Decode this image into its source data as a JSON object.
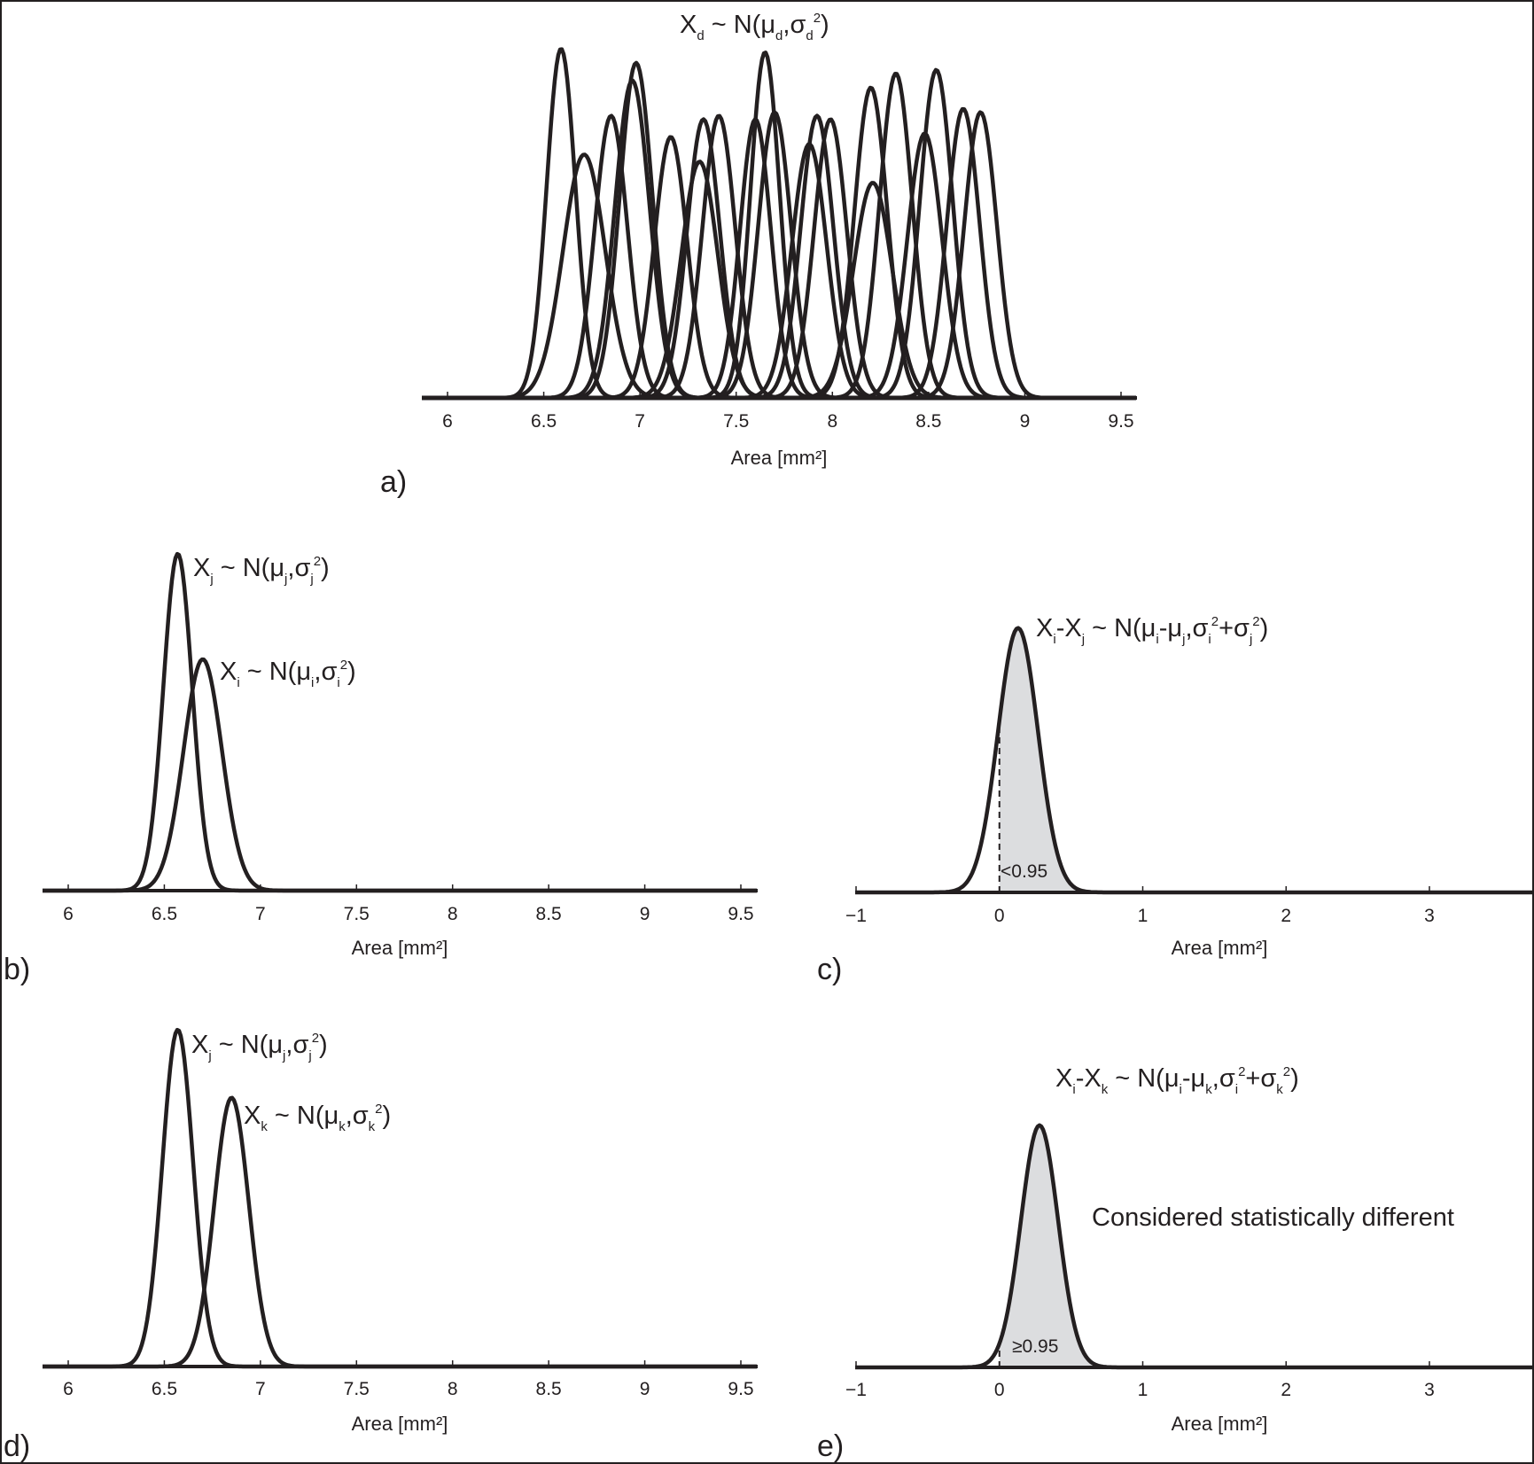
{
  "chart_data": [
    {
      "id": "a",
      "type": "line",
      "panel_label": "a)",
      "annotation": {
        "base": "X",
        "sub": "d",
        "rest1": " ~ N(μ",
        "sub2": "d",
        "rest2": ",σ",
        "sub3": "d",
        "sup": "2",
        "rest3": ")"
      },
      "xlabel": "Area  [mm²]",
      "xlim": [
        5.87,
        9.6
      ],
      "xticks": [
        6,
        6.5,
        7,
        7.5,
        8,
        8.5,
        9,
        9.5
      ],
      "xtick_labels": [
        "6",
        "6.5",
        "7",
        "7.5",
        "8",
        "8.5",
        "9",
        "9.5"
      ],
      "ylim": [
        0,
        1
      ],
      "series": [
        {
          "mean": 6.59,
          "sd": 0.075,
          "peak": 0.99
        },
        {
          "mean": 6.71,
          "sd": 0.11,
          "peak": 0.69
        },
        {
          "mean": 6.85,
          "sd": 0.085,
          "peak": 0.8
        },
        {
          "mean": 6.96,
          "sd": 0.09,
          "peak": 0.9
        },
        {
          "mean": 6.98,
          "sd": 0.085,
          "peak": 0.95
        },
        {
          "mean": 7.16,
          "sd": 0.085,
          "peak": 0.74
        },
        {
          "mean": 7.31,
          "sd": 0.095,
          "peak": 0.67
        },
        {
          "mean": 7.33,
          "sd": 0.085,
          "peak": 0.79
        },
        {
          "mean": 7.41,
          "sd": 0.085,
          "peak": 0.8
        },
        {
          "mean": 7.6,
          "sd": 0.08,
          "peak": 0.79
        },
        {
          "mean": 7.65,
          "sd": 0.075,
          "peak": 0.98
        },
        {
          "mean": 7.7,
          "sd": 0.085,
          "peak": 0.81
        },
        {
          "mean": 7.88,
          "sd": 0.09,
          "peak": 0.72
        },
        {
          "mean": 7.92,
          "sd": 0.085,
          "peak": 0.8
        },
        {
          "mean": 7.99,
          "sd": 0.085,
          "peak": 0.79
        },
        {
          "mean": 8.21,
          "sd": 0.1,
          "peak": 0.61
        },
        {
          "mean": 8.2,
          "sd": 0.085,
          "peak": 0.88
        },
        {
          "mean": 8.33,
          "sd": 0.085,
          "peak": 0.92
        },
        {
          "mean": 8.48,
          "sd": 0.09,
          "peak": 0.75
        },
        {
          "mean": 8.54,
          "sd": 0.085,
          "peak": 0.93
        },
        {
          "mean": 8.68,
          "sd": 0.085,
          "peak": 0.82
        },
        {
          "mean": 8.77,
          "sd": 0.085,
          "peak": 0.81
        }
      ]
    },
    {
      "id": "b",
      "type": "line",
      "panel_label": "b)",
      "xlabel": "Area  [mm²]",
      "xlim": [
        5.87,
        9.6
      ],
      "xticks": [
        6,
        6.5,
        7,
        7.5,
        8,
        8.5,
        9,
        9.5
      ],
      "xtick_labels": [
        "6",
        "6.5",
        "7",
        "7.5",
        "8",
        "8.5",
        "9",
        "9.5"
      ],
      "ylim": [
        0,
        1
      ],
      "series": [
        {
          "mean": 6.57,
          "sd": 0.075,
          "peak": 0.99
        },
        {
          "mean": 6.7,
          "sd": 0.1,
          "peak": 0.68
        }
      ],
      "annotations": [
        {
          "base": "X",
          "sub": "j",
          "rest1": " ~ N(μ",
          "sub2": "j",
          "rest2": ",σ",
          "sub3": "j",
          "sup": "2",
          "rest3": ")"
        },
        {
          "base": "X",
          "sub": "i",
          "rest1": " ~ N(μ",
          "sub2": "i",
          "rest2": ",σ",
          "sub3": "i",
          "sup": "2",
          "rest3": ")"
        }
      ]
    },
    {
      "id": "c",
      "type": "area",
      "panel_label": "c)",
      "xlabel": "Area  [mm²]",
      "xlim": [
        -1.03,
        3.75
      ],
      "xticks": [
        -1,
        0,
        1,
        2,
        3
      ],
      "xtick_labels": [
        "−1",
        "0",
        "1",
        "2",
        "3"
      ],
      "ylim": [
        0,
        1
      ],
      "series": [
        {
          "mean": 0.13,
          "sd": 0.14,
          "peak": 0.95
        }
      ],
      "threshold": 0,
      "threshold_label": "<0.95",
      "annotation": {
        "base": "X",
        "sub": "i",
        "mid": "-X",
        "sub_b": "j",
        "rest1": " ~ N(μ",
        "sub2": "i",
        "rest1b": "-μ",
        "sub2b": "j",
        "rest2": ",σ",
        "sub3": "i",
        "sup": "2",
        "rest2b": "+σ",
        "sub3b": "j",
        "sup2": "2",
        "rest3": ")"
      }
    },
    {
      "id": "d",
      "type": "line",
      "panel_label": "d)",
      "xlabel": "Area  [mm²]",
      "xlim": [
        5.87,
        9.6
      ],
      "xticks": [
        6,
        6.5,
        7,
        7.5,
        8,
        8.5,
        9,
        9.5
      ],
      "xtick_labels": [
        "6",
        "6.5",
        "7",
        "7.5",
        "8",
        "8.5",
        "9",
        "9.5"
      ],
      "ylim": [
        0,
        1
      ],
      "series": [
        {
          "mean": 6.57,
          "sd": 0.08,
          "peak": 0.99
        },
        {
          "mean": 6.85,
          "sd": 0.09,
          "peak": 0.79
        }
      ],
      "annotations": [
        {
          "base": "X",
          "sub": "j",
          "rest1": " ~ N(μ",
          "sub2": "j",
          "rest2": ",σ",
          "sub3": "j",
          "sup": "2",
          "rest3": ")"
        },
        {
          "base": "X",
          "sub": "k",
          "rest1": " ~ N(μ",
          "sub2": "k",
          "rest2": ",σ",
          "sub3": "k",
          "sup": "2",
          "rest3": ")"
        }
      ]
    },
    {
      "id": "e",
      "type": "area",
      "panel_label": "e)",
      "xlabel": "Area  [mm²]",
      "xlim": [
        -1.03,
        3.75
      ],
      "xticks": [
        -1,
        0,
        1,
        2,
        3
      ],
      "xtick_labels": [
        "−1",
        "0",
        "1",
        "2",
        "3"
      ],
      "ylim": [
        0,
        1
      ],
      "series": [
        {
          "mean": 0.28,
          "sd": 0.13,
          "peak": 0.87
        }
      ],
      "threshold": 0,
      "threshold_label": "≥0.95",
      "note": "Considered statistically different",
      "annotation": {
        "base": "X",
        "sub": "i",
        "mid": "-X",
        "sub_b": "k",
        "rest1": " ~ N(μ",
        "sub2": "i",
        "rest1b": "-μ",
        "sub2b": "k",
        "rest2": ",σ",
        "sub3": "i",
        "sup": "2",
        "rest2b": "+σ",
        "sub3b": "k",
        "sup2": "2",
        "rest3": ")"
      }
    }
  ]
}
